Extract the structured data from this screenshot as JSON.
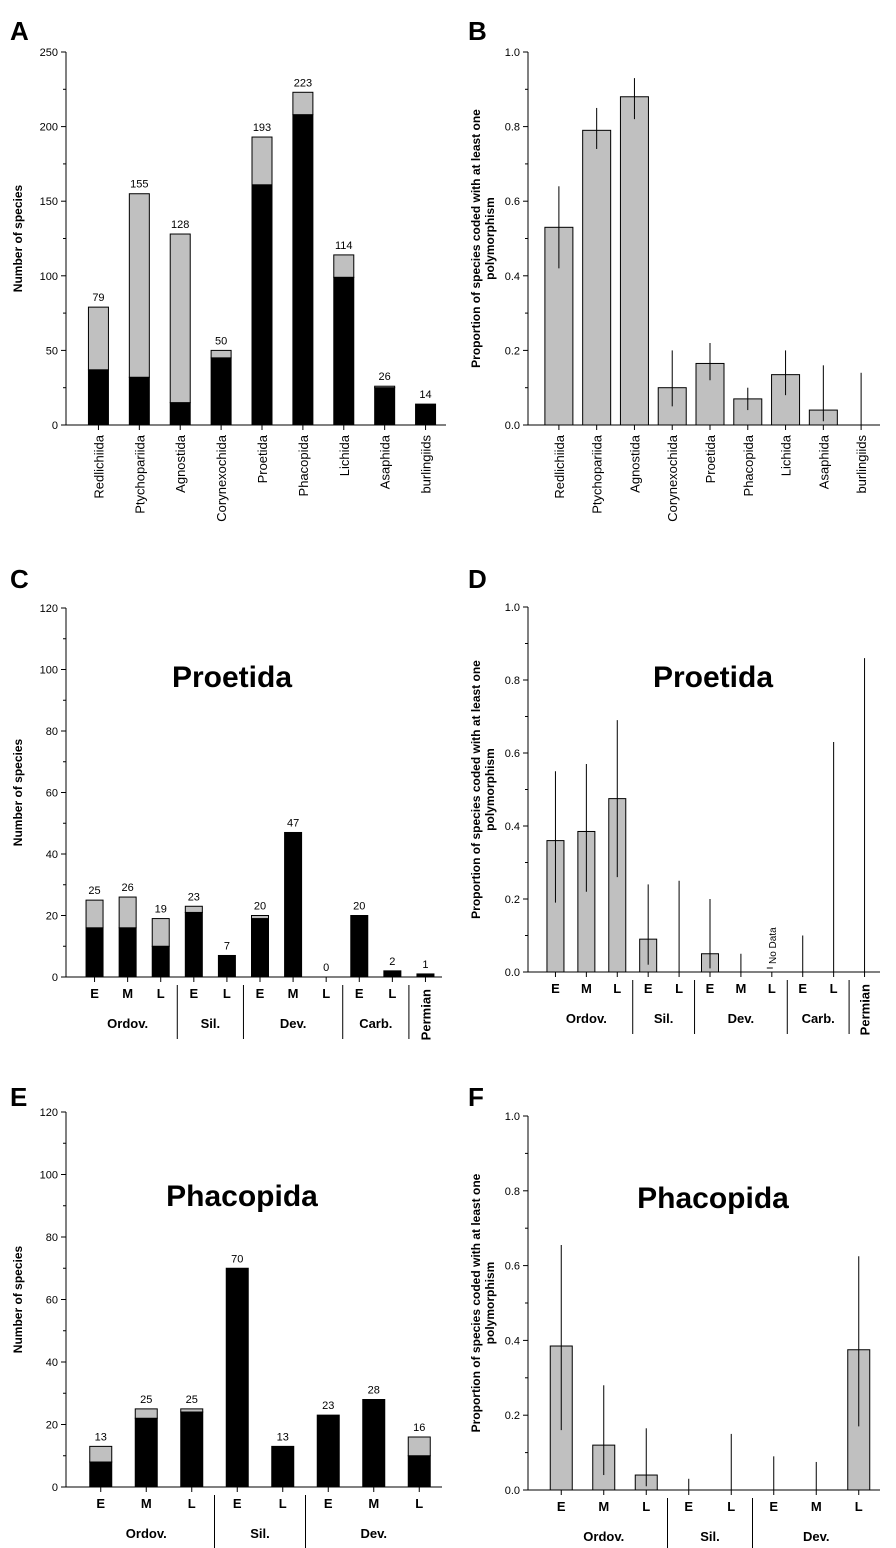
{
  "chart_data": [
    {
      "panel": "A",
      "type": "bar",
      "stacked": true,
      "ylabel": "Number of species",
      "ylim": [
        0,
        250
      ],
      "yticks": [
        0,
        50,
        100,
        150,
        200,
        250
      ],
      "categories": [
        "Redlichiida",
        "Ptychopariida",
        "Agnostida",
        "Corynexochida",
        "Proetida",
        "Phacopida",
        "Lichida",
        "Asaphida",
        "burlingiids"
      ],
      "series": [
        {
          "color": "#000000",
          "values": [
            37,
            32,
            15,
            45,
            161,
            208,
            99,
            25,
            14
          ]
        },
        {
          "color": "#c0c0c0",
          "values": [
            42,
            123,
            113,
            5,
            32,
            15,
            15,
            1,
            0
          ]
        }
      ],
      "totals": [
        "79",
        "155",
        "128",
        "50",
        "193",
        "223",
        "114",
        "26",
        "14"
      ]
    },
    {
      "panel": "B",
      "type": "bar",
      "ylabel": "Proportion of species coded with at least one polymorphism",
      "ylim": [
        0,
        1
      ],
      "yticks": [
        "0.0",
        "0.2",
        "0.4",
        "0.6",
        "0.8",
        "1.0"
      ],
      "categories": [
        "Redlichiida",
        "Ptychopariida",
        "Agnostida",
        "Corynexochida",
        "Proetida",
        "Phacopida",
        "Lichida",
        "Asaphida",
        "burlingiids"
      ],
      "values": [
        0.53,
        0.79,
        0.88,
        0.1,
        0.165,
        0.07,
        0.135,
        0.04,
        0
      ],
      "error_low": [
        0.42,
        0.74,
        0.82,
        0.05,
        0.12,
        0.04,
        0.08,
        0.01,
        0
      ],
      "error_high": [
        0.64,
        0.85,
        0.93,
        0.2,
        0.22,
        0.1,
        0.2,
        0.16,
        0.14
      ]
    },
    {
      "panel": "C",
      "type": "bar",
      "stacked": true,
      "title": "Proetida",
      "ylabel": "Number of species",
      "ylim": [
        0,
        120
      ],
      "yticks": [
        0,
        20,
        40,
        60,
        80,
        100,
        120
      ],
      "categories": [
        "E",
        "M",
        "L",
        "E",
        "L",
        "E",
        "M",
        "L",
        "E",
        "L",
        ""
      ],
      "periods": [
        {
          "label": "Ordov.",
          "from": 0,
          "to": 2
        },
        {
          "label": "Sil.",
          "from": 3,
          "to": 4
        },
        {
          "label": "Dev.",
          "from": 5,
          "to": 7
        },
        {
          "label": "Carb.",
          "from": 8,
          "to": 9
        },
        {
          "label": "Permian",
          "from": 10,
          "to": 10
        }
      ],
      "series": [
        {
          "color": "#000000",
          "values": [
            16,
            16,
            10,
            21,
            7,
            19,
            47,
            0,
            20,
            2,
            1
          ]
        },
        {
          "color": "#c0c0c0",
          "values": [
            9,
            10,
            9,
            2,
            0,
            1,
            0,
            0,
            0,
            0,
            0
          ]
        }
      ],
      "totals": [
        "25",
        "26",
        "19",
        "23",
        "7",
        "20",
        "47",
        "0",
        "20",
        "2",
        "1"
      ]
    },
    {
      "panel": "D",
      "type": "bar",
      "title": "Proetida",
      "ylabel": "Proportion of species coded with at least one polymorphism",
      "ylim": [
        0,
        1
      ],
      "yticks": [
        "0.0",
        "0.2",
        "0.4",
        "0.6",
        "0.8",
        "1.0"
      ],
      "categories": [
        "E",
        "M",
        "L",
        "E",
        "L",
        "E",
        "M",
        "L",
        "E",
        "L",
        ""
      ],
      "periods": [
        {
          "label": "Ordov.",
          "from": 0,
          "to": 2
        },
        {
          "label": "Sil.",
          "from": 3,
          "to": 4
        },
        {
          "label": "Dev.",
          "from": 5,
          "to": 7
        },
        {
          "label": "Carb.",
          "from": 8,
          "to": 9
        },
        {
          "label": "Permian",
          "from": 10,
          "to": 10
        }
      ],
      "values": [
        0.36,
        0.385,
        0.475,
        0.09,
        0,
        0.05,
        0,
        null,
        0,
        0,
        0
      ],
      "error_low": [
        0.19,
        0.22,
        0.26,
        0.02,
        0,
        0.01,
        0,
        null,
        0,
        0,
        0
      ],
      "error_high": [
        0.55,
        0.57,
        0.69,
        0.24,
        0.25,
        0.2,
        0.05,
        null,
        0.1,
        0.63,
        0.86
      ],
      "annotation": "No Data"
    },
    {
      "panel": "E",
      "type": "bar",
      "stacked": true,
      "title": "Phacopida",
      "ylabel": "Number of species",
      "ylim": [
        0,
        120
      ],
      "yticks": [
        0,
        20,
        40,
        60,
        80,
        100,
        120
      ],
      "categories": [
        "E",
        "M",
        "L",
        "E",
        "L",
        "E",
        "M",
        "L"
      ],
      "periods": [
        {
          "label": "Ordov.",
          "from": 0,
          "to": 2
        },
        {
          "label": "Sil.",
          "from": 3,
          "to": 4
        },
        {
          "label": "Dev.",
          "from": 5,
          "to": 7
        }
      ],
      "series": [
        {
          "color": "#000000",
          "values": [
            8,
            22,
            24,
            70,
            13,
            23,
            28,
            10
          ]
        },
        {
          "color": "#c0c0c0",
          "values": [
            5,
            3,
            1,
            0,
            0,
            0,
            0,
            6
          ]
        }
      ],
      "totals": [
        "13",
        "25",
        "25",
        "70",
        "13",
        "23",
        "28",
        "16"
      ]
    },
    {
      "panel": "F",
      "type": "bar",
      "title": "Phacopida",
      "ylabel": "Proportion of species coded with at least one polymorphism",
      "ylim": [
        0,
        1
      ],
      "yticks": [
        "0.0",
        "0.2",
        "0.4",
        "0.6",
        "0.8",
        "1.0"
      ],
      "categories": [
        "E",
        "M",
        "L",
        "E",
        "L",
        "E",
        "M",
        "L"
      ],
      "periods": [
        {
          "label": "Ordov.",
          "from": 0,
          "to": 2
        },
        {
          "label": "Sil.",
          "from": 3,
          "to": 4
        },
        {
          "label": "Dev.",
          "from": 5,
          "to": 7
        }
      ],
      "values": [
        0.385,
        0.12,
        0.04,
        0,
        0,
        0,
        0,
        0.375
      ],
      "error_low": [
        0.16,
        0.04,
        0.01,
        0,
        0,
        0,
        0,
        0.17
      ],
      "error_high": [
        0.655,
        0.28,
        0.165,
        0.03,
        0.15,
        0.09,
        0.075,
        0.625
      ]
    }
  ]
}
